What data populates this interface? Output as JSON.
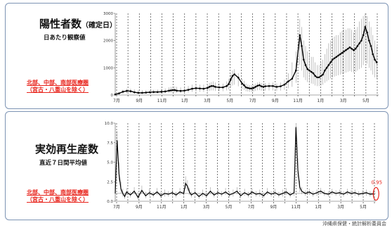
{
  "panel1": {
    "title_main": "陽性者数",
    "title_small": "（確定日）",
    "subtitle": "日あたり観察値",
    "region_line1": "北部、中部、南部医療圏",
    "region_line2": "（宮古・八重山を除く）"
  },
  "panel2": {
    "title_main": "実効再生産数",
    "subtitle": "直近７日間平均値",
    "region_line1": "北部、中部、南部医療圏",
    "region_line2": "（宮古・八重山を除く）",
    "latest_label": "0.95"
  },
  "footer": "沖縄県保健・統計解析委員会",
  "chart_data": [
    {
      "type": "scatter",
      "title": "陽性者数（確定日）",
      "ylim": [
        0,
        3000
      ],
      "yticks": [
        "0",
        "1000",
        "2000",
        "3000"
      ],
      "month_labels": [
        "7月",
        "9月",
        "11月",
        "1月",
        "3月",
        "5月",
        "7月",
        "9月",
        "11月",
        "1月",
        "3月",
        "5月"
      ],
      "grid": "vertical dashed month lines",
      "x": [
        0,
        2,
        4,
        6,
        8,
        10,
        12,
        14,
        16,
        18,
        20,
        22,
        24,
        26,
        28,
        29,
        30,
        31,
        32,
        34,
        36,
        38,
        40,
        42,
        44,
        46,
        48,
        49,
        50,
        51,
        52,
        54,
        56,
        58,
        59,
        60,
        61,
        62,
        64,
        66,
        67,
        68,
        69,
        70,
        71,
        72,
        73,
        74,
        75,
        76,
        77,
        78,
        80,
        82,
        84,
        86,
        88,
        90,
        92,
        94,
        96,
        97,
        98,
        99,
        100,
        101,
        102,
        103,
        104,
        105,
        106,
        107,
        108,
        109,
        110,
        111,
        112,
        113,
        114,
        115,
        116,
        117,
        118,
        119,
        120,
        121,
        122,
        123,
        124,
        125,
        126,
        127,
        128,
        129,
        130,
        131,
        132,
        133,
        134,
        135,
        136
      ],
      "y": [
        20,
        60,
        120,
        150,
        140,
        100,
        80,
        80,
        90,
        100,
        110,
        110,
        120,
        130,
        160,
        170,
        180,
        180,
        160,
        150,
        160,
        190,
        230,
        250,
        240,
        230,
        260,
        300,
        330,
        330,
        300,
        280,
        280,
        330,
        400,
        560,
        700,
        760,
        640,
        420,
        360,
        280,
        260,
        240,
        240,
        260,
        300,
        340,
        360,
        320,
        300,
        320,
        330,
        330,
        300,
        320,
        380,
        500,
        600,
        900,
        2200,
        1800,
        1300,
        1100,
        950,
        900,
        850,
        800,
        700,
        650,
        650,
        700,
        750,
        900,
        1000,
        1100,
        1200,
        1300,
        1350,
        1400,
        1450,
        1500,
        1550,
        1600,
        1650,
        1700,
        1750,
        1700,
        1650,
        1700,
        1800,
        1900,
        2000,
        2200,
        2500,
        2300,
        2000,
        1800,
        1500,
        1300,
        1200
      ],
      "upper": [
        20,
        100,
        200,
        230,
        230,
        200,
        180,
        180,
        180,
        180,
        190,
        200,
        220,
        240,
        280,
        300,
        310,
        320,
        300,
        280,
        280,
        330,
        380,
        400,
        380,
        380,
        400,
        450,
        480,
        500,
        460,
        420,
        420,
        500,
        600,
        750,
        900,
        950,
        800,
        600,
        520,
        420,
        380,
        360,
        360,
        380,
        420,
        460,
        480,
        440,
        420,
        440,
        450,
        460,
        420,
        460,
        560,
        800,
        1200,
        1600,
        2800,
        2500,
        2000,
        1800,
        1600,
        1500,
        1400,
        1400,
        1200,
        1100,
        1100,
        1200,
        1300,
        1500,
        1700,
        1900,
        2000,
        2100,
        2150,
        2200,
        2200,
        2300,
        2350,
        2400,
        2400,
        2450,
        2450,
        2400,
        2300,
        2400,
        2500,
        2700,
        2800,
        2900,
        3000,
        2900,
        2700,
        2500,
        2200,
        2000,
        1800
      ],
      "lower": [
        10,
        20,
        40,
        60,
        60,
        50,
        40,
        40,
        45,
        50,
        55,
        55,
        60,
        65,
        80,
        85,
        90,
        90,
        80,
        75,
        80,
        95,
        115,
        125,
        120,
        115,
        130,
        150,
        165,
        165,
        150,
        140,
        140,
        165,
        200,
        280,
        350,
        380,
        320,
        210,
        180,
        140,
        130,
        120,
        120,
        130,
        150,
        170,
        180,
        160,
        150,
        160,
        165,
        165,
        150,
        160,
        190,
        250,
        300,
        450,
        1100,
        900,
        650,
        550,
        475,
        450,
        425,
        400,
        350,
        325,
        325,
        350,
        375,
        450,
        500,
        550,
        600,
        650,
        675,
        700,
        725,
        750,
        775,
        800,
        825,
        850,
        875,
        850,
        825,
        850,
        900,
        950,
        1000,
        1100,
        1250,
        1150,
        1000,
        900,
        750,
        650,
        600
      ]
    },
    {
      "type": "line",
      "title": "実効再生産数",
      "ylim": [
        0,
        10
      ],
      "yticks": [
        "0.0",
        "2.5",
        "5.0",
        "7.5",
        "10.0"
      ],
      "reference_line": 1,
      "month_labels": [
        "7月",
        "9月",
        "11月",
        "1月",
        "3月",
        "5月",
        "7月",
        "9月",
        "11月",
        "1月",
        "3月",
        "5月"
      ],
      "x": [
        0,
        1,
        2,
        3,
        4,
        5,
        6,
        8,
        10,
        12,
        14,
        16,
        18,
        20,
        22,
        24,
        26,
        28,
        30,
        32,
        34,
        36,
        37,
        38,
        39,
        40,
        42,
        44,
        46,
        48,
        50,
        52,
        54,
        56,
        58,
        60,
        62,
        64,
        66,
        68,
        70,
        72,
        74,
        76,
        78,
        80,
        82,
        84,
        86,
        88,
        90,
        92,
        94,
        95,
        96,
        97,
        98,
        100,
        102,
        104,
        106,
        108,
        110,
        112,
        114,
        116,
        118,
        120,
        122,
        124,
        126,
        128,
        130,
        132,
        134,
        136
      ],
      "y": [
        1.0,
        7.8,
        3.5,
        1.6,
        1.0,
        0.6,
        1.2,
        0.8,
        1.3,
        0.5,
        1.4,
        0.7,
        1.1,
        0.8,
        1.2,
        0.7,
        1.0,
        0.9,
        1.1,
        0.8,
        1.2,
        1.0,
        2.3,
        1.9,
        1.2,
        0.8,
        1.1,
        0.6,
        1.0,
        0.7,
        1.3,
        0.8,
        1.1,
        0.9,
        1.2,
        0.8,
        1.0,
        1.3,
        0.7,
        1.1,
        0.8,
        1.2,
        0.9,
        1.0,
        0.7,
        1.2,
        0.9,
        1.1,
        0.8,
        1.0,
        1.2,
        0.8,
        1.1,
        9.5,
        4.0,
        1.8,
        1.3,
        1.0,
        1.2,
        0.9,
        1.1,
        1.3,
        1.0,
        0.9,
        1.2,
        1.0,
        1.1,
        0.9,
        1.2,
        1.0,
        1.1,
        0.9,
        1.0,
        1.1,
        0.9,
        0.95
      ],
      "upper": [
        1.3,
        9.0,
        5.0,
        2.5,
        1.6,
        1.0,
        1.7,
        1.2,
        1.8,
        0.9,
        2.0,
        1.2,
        1.6,
        1.2,
        1.7,
        1.1,
        1.5,
        1.3,
        1.6,
        1.2,
        1.7,
        1.4,
        3.2,
        2.7,
        1.7,
        1.2,
        1.6,
        1.0,
        1.5,
        1.1,
        1.8,
        1.2,
        1.6,
        1.3,
        1.7,
        1.2,
        1.5,
        1.8,
        1.1,
        1.6,
        1.2,
        1.7,
        1.3,
        1.5,
        1.1,
        1.7,
        1.3,
        1.6,
        1.2,
        1.5,
        1.7,
        1.2,
        1.6,
        10.0,
        5.5,
        2.6,
        1.8,
        1.4,
        1.6,
        1.3,
        1.5,
        1.7,
        1.4,
        1.3,
        1.6,
        1.4,
        1.5,
        1.3,
        1.6,
        1.4,
        1.5,
        1.3,
        1.4,
        1.5,
        1.3,
        1.3
      ],
      "lower": [
        0.7,
        6.5,
        2.5,
        1.0,
        0.6,
        0.3,
        0.8,
        0.5,
        0.9,
        0.2,
        1.0,
        0.4,
        0.7,
        0.5,
        0.8,
        0.4,
        0.6,
        0.6,
        0.7,
        0.5,
        0.8,
        0.7,
        1.6,
        1.3,
        0.8,
        0.5,
        0.7,
        0.3,
        0.6,
        0.4,
        0.9,
        0.5,
        0.7,
        0.6,
        0.8,
        0.5,
        0.6,
        0.9,
        0.4,
        0.7,
        0.5,
        0.8,
        0.6,
        0.6,
        0.4,
        0.8,
        0.6,
        0.7,
        0.5,
        0.6,
        0.8,
        0.5,
        0.7,
        8.5,
        3.0,
        1.2,
        0.9,
        0.7,
        0.8,
        0.6,
        0.7,
        0.9,
        0.7,
        0.6,
        0.8,
        0.7,
        0.7,
        0.6,
        0.8,
        0.7,
        0.7,
        0.6,
        0.7,
        0.7,
        0.6,
        0.7
      ],
      "latest_value": 0.95
    }
  ]
}
